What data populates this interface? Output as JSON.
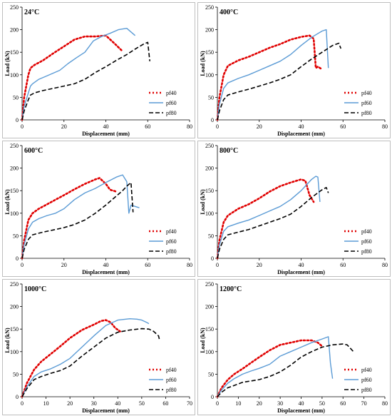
{
  "colors": {
    "pf40": "#e00000",
    "pf60": "#5b9bd5",
    "pf80": "#000000",
    "frame": "#bfbfbf"
  },
  "chart_data": [
    {
      "type": "line",
      "title": "24°C",
      "xlabel": "Displacement (mm)",
      "ylabel": "Load (kN)",
      "xlim": [
        0,
        80
      ],
      "ylim": [
        0,
        250
      ],
      "xticks": [
        "0",
        "20",
        "40",
        "60",
        "80"
      ],
      "yticks": [
        "0",
        "50",
        "100",
        "150",
        "200",
        "250"
      ],
      "legend": "bottom-right",
      "grid": false,
      "series": [
        {
          "name": "pf40",
          "style": "dotted",
          "x": [
            0,
            1,
            3,
            4,
            6,
            10,
            15,
            20,
            25,
            30,
            35,
            40,
            44,
            48
          ],
          "y": [
            0,
            50,
            100,
            115,
            122,
            132,
            148,
            163,
            178,
            185,
            185,
            187,
            170,
            152
          ]
        },
        {
          "name": "pf60",
          "style": "solid",
          "x": [
            0,
            1,
            3,
            4,
            5,
            8,
            12,
            18,
            22,
            26,
            30,
            34,
            38,
            42,
            46,
            50,
            52,
            54
          ],
          "y": [
            0,
            30,
            60,
            75,
            80,
            90,
            98,
            110,
            125,
            138,
            150,
            175,
            185,
            192,
            200,
            203,
            195,
            187
          ]
        },
        {
          "name": "pf80",
          "style": "dashed",
          "x": [
            0,
            1,
            3,
            4,
            6,
            10,
            15,
            20,
            25,
            30,
            35,
            40,
            45,
            50,
            55,
            58,
            60,
            61
          ],
          "y": [
            0,
            20,
            45,
            55,
            60,
            65,
            70,
            75,
            80,
            90,
            105,
            118,
            132,
            145,
            160,
            168,
            172,
            130
          ]
        }
      ]
    },
    {
      "type": "line",
      "title": "400°C",
      "xlabel": "Displacement (mm)",
      "ylabel": "Load (kN)",
      "xlim": [
        0,
        80
      ],
      "ylim": [
        0,
        250
      ],
      "xticks": [
        "0",
        "20",
        "40",
        "60",
        "80"
      ],
      "yticks": [
        "0",
        "50",
        "100",
        "150",
        "200",
        "250"
      ],
      "legend": "bottom-right",
      "grid": false,
      "series": [
        {
          "name": "pf40",
          "style": "dotted",
          "x": [
            0,
            1,
            3,
            5,
            10,
            15,
            20,
            25,
            30,
            35,
            40,
            44,
            46,
            47,
            48,
            50
          ],
          "y": [
            0,
            50,
            100,
            120,
            132,
            140,
            150,
            160,
            168,
            178,
            184,
            187,
            180,
            115,
            118,
            112
          ]
        },
        {
          "name": "pf60",
          "style": "solid",
          "x": [
            0,
            1,
            3,
            5,
            10,
            15,
            20,
            25,
            30,
            35,
            40,
            45,
            50,
            52,
            53
          ],
          "y": [
            0,
            35,
            70,
            82,
            92,
            100,
            110,
            120,
            130,
            145,
            165,
            183,
            197,
            200,
            115
          ]
        },
        {
          "name": "pf80",
          "style": "dashed",
          "x": [
            0,
            1,
            3,
            5,
            10,
            15,
            20,
            25,
            30,
            35,
            40,
            45,
            50,
            55,
            58,
            59
          ],
          "y": [
            0,
            20,
            45,
            55,
            62,
            68,
            75,
            82,
            90,
            100,
            118,
            135,
            150,
            165,
            170,
            158
          ]
        }
      ]
    },
    {
      "type": "line",
      "title": "600°C",
      "xlabel": "Displacement (mm)",
      "ylabel": "Load (kN)",
      "xlim": [
        0,
        80
      ],
      "ylim": [
        0,
        250
      ],
      "xticks": [
        "0",
        "20",
        "40",
        "60",
        "80"
      ],
      "yticks": [
        "0",
        "50",
        "100",
        "150",
        "200",
        "250"
      ],
      "legend": "bottom-right",
      "grid": false,
      "series": [
        {
          "name": "pf40",
          "style": "dotted",
          "x": [
            0,
            1,
            3,
            5,
            8,
            12,
            16,
            20,
            25,
            30,
            35,
            37,
            40,
            42,
            45
          ],
          "y": [
            0,
            40,
            85,
            100,
            110,
            120,
            130,
            140,
            153,
            165,
            175,
            178,
            165,
            152,
            148
          ]
        },
        {
          "name": "pf60",
          "style": "solid",
          "x": [
            0,
            1,
            3,
            5,
            8,
            12,
            16,
            20,
            25,
            30,
            35,
            40,
            45,
            48,
            50,
            51,
            52,
            54,
            56
          ],
          "y": [
            0,
            30,
            65,
            80,
            88,
            95,
            100,
            110,
            130,
            145,
            155,
            168,
            180,
            185,
            170,
            100,
            118,
            115,
            112
          ]
        },
        {
          "name": "pf80",
          "style": "dashed",
          "x": [
            0,
            1,
            3,
            5,
            10,
            15,
            20,
            25,
            30,
            35,
            40,
            45,
            48,
            50,
            52,
            53
          ],
          "y": [
            0,
            20,
            42,
            52,
            58,
            63,
            68,
            75,
            85,
            100,
            118,
            138,
            150,
            160,
            168,
            102
          ]
        }
      ]
    },
    {
      "type": "line",
      "title": "800°C",
      "xlabel": "Displacement (mm)",
      "ylabel": "Load (kN)",
      "xlim": [
        0,
        80
      ],
      "ylim": [
        0,
        250
      ],
      "xticks": [
        "0",
        "20",
        "40",
        "60",
        "80"
      ],
      "yticks": [
        "0",
        "50",
        "100",
        "150",
        "200",
        "250"
      ],
      "legend": "bottom-right",
      "grid": false,
      "series": [
        {
          "name": "pf40",
          "style": "dotted",
          "x": [
            0,
            1,
            3,
            5,
            10,
            15,
            20,
            25,
            30,
            35,
            40,
            42,
            44,
            46
          ],
          "y": [
            0,
            40,
            80,
            95,
            110,
            120,
            133,
            148,
            160,
            168,
            175,
            172,
            140,
            125
          ]
        },
        {
          "name": "pf60",
          "style": "solid",
          "x": [
            0,
            1,
            3,
            5,
            10,
            15,
            20,
            25,
            30,
            35,
            40,
            45,
            47,
            48,
            49
          ],
          "y": [
            0,
            30,
            60,
            70,
            78,
            85,
            95,
            105,
            115,
            130,
            150,
            175,
            182,
            180,
            125
          ]
        },
        {
          "name": "pf80",
          "style": "dashed",
          "x": [
            0,
            1,
            3,
            5,
            10,
            15,
            20,
            25,
            30,
            35,
            40,
            45,
            50,
            52,
            53
          ],
          "y": [
            0,
            20,
            42,
            52,
            58,
            64,
            72,
            80,
            88,
            98,
            115,
            135,
            152,
            157,
            145
          ]
        }
      ]
    },
    {
      "type": "line",
      "title": "1000°C",
      "xlabel": "Displacement (mm)",
      "ylabel": "Load (kN)",
      "xlim": [
        0,
        70
      ],
      "ylim": [
        0,
        250
      ],
      "xticks": [
        "0",
        "10",
        "20",
        "30",
        "40",
        "50",
        "60",
        "70"
      ],
      "yticks": [
        "0",
        "50",
        "100",
        "150",
        "200",
        "250"
      ],
      "legend": "bottom-right",
      "grid": false,
      "series": [
        {
          "name": "pf40",
          "style": "dotted",
          "x": [
            0,
            2,
            5,
            8,
            12,
            16,
            20,
            25,
            30,
            33,
            35,
            37,
            39,
            41
          ],
          "y": [
            0,
            30,
            60,
            78,
            95,
            112,
            130,
            148,
            160,
            168,
            170,
            165,
            152,
            145
          ]
        },
        {
          "name": "pf60",
          "style": "solid",
          "x": [
            0,
            2,
            5,
            8,
            12,
            16,
            20,
            25,
            30,
            35,
            40,
            45,
            48,
            50,
            52,
            53
          ],
          "y": [
            0,
            22,
            45,
            55,
            62,
            72,
            85,
            110,
            135,
            158,
            170,
            173,
            172,
            170,
            165,
            162
          ]
        },
        {
          "name": "pf80",
          "style": "dashed",
          "x": [
            0,
            2,
            5,
            8,
            12,
            16,
            20,
            25,
            30,
            35,
            40,
            45,
            50,
            53,
            55,
            57,
            57.5
          ],
          "y": [
            0,
            18,
            38,
            45,
            52,
            58,
            68,
            90,
            110,
            130,
            143,
            148,
            151,
            150,
            145,
            135,
            125
          ]
        }
      ]
    },
    {
      "type": "line",
      "title": "1200°C",
      "xlabel": "Displacement (mm)",
      "ylabel": "Load (kN)",
      "xlim": [
        0,
        80
      ],
      "ylim": [
        0,
        250
      ],
      "xticks": [
        "0",
        "10",
        "20",
        "30",
        "40",
        "50",
        "60",
        "70",
        "80"
      ],
      "yticks": [
        "0",
        "50",
        "100",
        "150",
        "200",
        "250"
      ],
      "legend": "bottom-right",
      "grid": false,
      "series": [
        {
          "name": "pf40",
          "style": "dotted",
          "x": [
            0,
            2,
            5,
            8,
            12,
            16,
            20,
            25,
            30,
            35,
            40,
            45,
            48,
            50
          ],
          "y": [
            0,
            20,
            38,
            50,
            62,
            75,
            88,
            103,
            115,
            120,
            125,
            125,
            120,
            112
          ]
        },
        {
          "name": "pf60",
          "style": "solid",
          "x": [
            0,
            2,
            5,
            8,
            12,
            16,
            20,
            25,
            30,
            35,
            40,
            45,
            50,
            53,
            54,
            55
          ],
          "y": [
            0,
            15,
            30,
            40,
            50,
            57,
            63,
            72,
            90,
            100,
            110,
            120,
            128,
            133,
            75,
            40
          ]
        },
        {
          "name": "pf80",
          "style": "dashed",
          "x": [
            0,
            2,
            5,
            8,
            12,
            16,
            20,
            25,
            30,
            35,
            40,
            45,
            50,
            55,
            60,
            62,
            65
          ],
          "y": [
            0,
            10,
            20,
            25,
            32,
            35,
            38,
            45,
            55,
            70,
            88,
            100,
            110,
            115,
            117,
            115,
            100
          ]
        }
      ]
    }
  ]
}
